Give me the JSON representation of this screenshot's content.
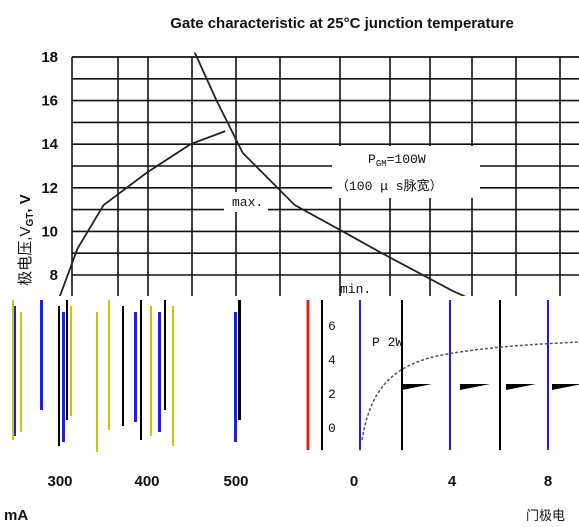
{
  "chart_data": {
    "type": "line",
    "title": "Gate characteristic at 25°C junction temperature",
    "ylabel": "极电压,VGT, V",
    "ylabel_parts": {
      "prefix": "极电压,V",
      "sub": "GT",
      "suffix": ", V"
    },
    "xlabel_left": "mA",
    "xlabel_right": "门极电",
    "y_ticks": [
      "18",
      "16",
      "14",
      "12",
      "10",
      "8"
    ],
    "ylim_visible": [
      8,
      18
    ],
    "x_ticks_left": [
      "300",
      "400",
      "500"
    ],
    "x_ticks_right": [
      "0",
      "4",
      "8"
    ],
    "inset_y_ticks": [
      "6",
      "4",
      "2",
      "0"
    ],
    "annotations": {
      "pgm_prefix": "P",
      "pgm_sub": "GM",
      "pgm_suffix": "=100W",
      "pulse": "（100 μ s脉宽）",
      "max_label": "max.",
      "min_label": "min.",
      "inset_label": "P 2W"
    },
    "series": [
      {
        "name": "max.",
        "points": [
          [
            295,
            6.5
          ],
          [
            320,
            9.2
          ],
          [
            350,
            11.2
          ],
          [
            400,
            12.7
          ],
          [
            450,
            14.0
          ],
          [
            490,
            14.6
          ]
        ]
      },
      {
        "name": "P_GM=100W",
        "points": [
          [
            455,
            18.2
          ],
          [
            480,
            16.0
          ],
          [
            510,
            13.6
          ],
          [
            570,
            11.2
          ],
          [
            625,
            10.0
          ],
          [
            670,
            9.0
          ],
          [
            750,
            7.3
          ],
          [
            810,
            6.2
          ]
        ]
      }
    ],
    "grid": true
  }
}
